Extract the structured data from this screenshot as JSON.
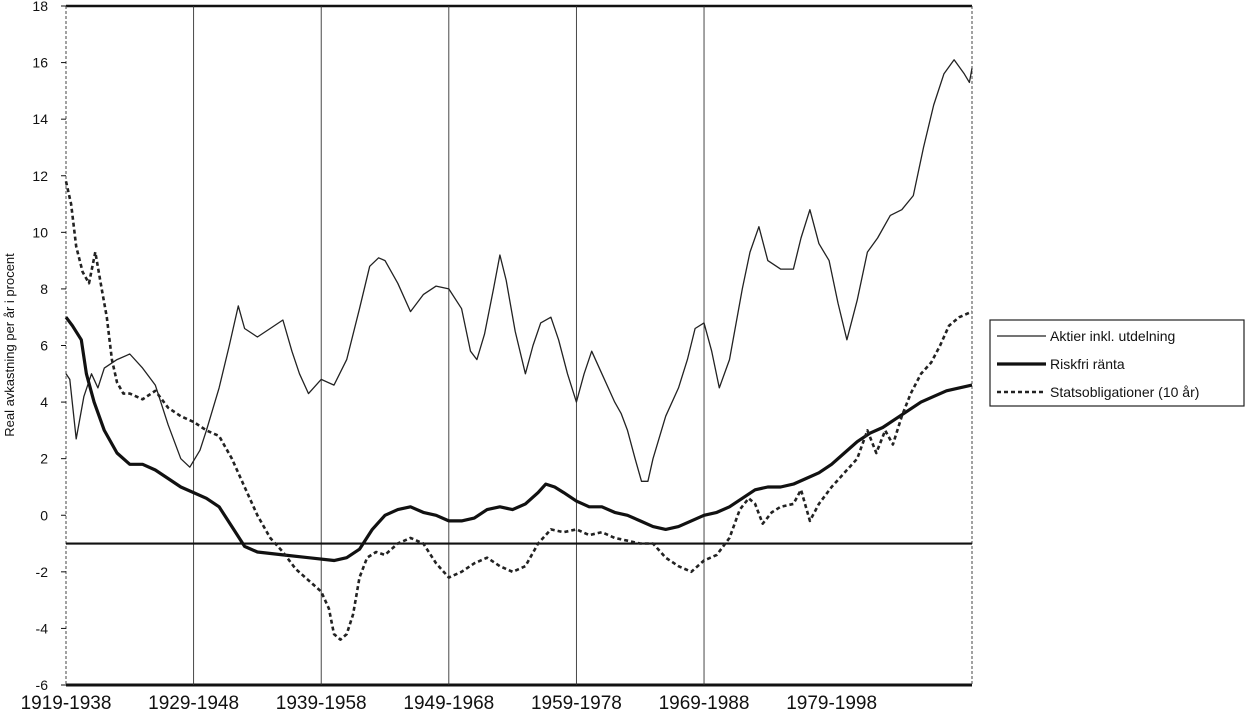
{
  "chart_data": {
    "type": "line",
    "title": "",
    "xlabel": "",
    "ylabel": "Real avkastning per år i procent",
    "ylim": [
      -6,
      18
    ],
    "yticks": [
      -6,
      -4,
      -2,
      0,
      2,
      4,
      6,
      8,
      10,
      12,
      14,
      16,
      18
    ],
    "x_axis": {
      "start_year": 1938,
      "end_year": 1998,
      "tick_labels": [
        "1919-1938",
        "1929-1948",
        "1939-1958",
        "1949-1968",
        "1959-1978",
        "1969-1988",
        "1979-1998"
      ],
      "tick_positions": [
        1938,
        1948,
        1958,
        1968,
        1978,
        1988,
        1998
      ]
    },
    "grid": {
      "vertical": true,
      "horizontal": false
    },
    "reference_lines": [
      {
        "y": -1,
        "style": "solid"
      }
    ],
    "legend_position": "right",
    "legend": [
      {
        "name": "Aktier inkl. utdelning",
        "style": "thin",
        "color": "#222222"
      },
      {
        "name": "Riskfri ränta",
        "style": "thick",
        "color": "#111111"
      },
      {
        "name": "Statsobligationer (10 år)",
        "style": "dashed",
        "color": "#222222"
      }
    ],
    "series": [
      {
        "name": "Aktier inkl. utdelning",
        "points": [
          [
            1938.0,
            5.0
          ],
          [
            1938.3,
            4.8
          ],
          [
            1938.8,
            2.7
          ],
          [
            1939.4,
            4.2
          ],
          [
            1940.0,
            5.0
          ],
          [
            1940.5,
            4.5
          ],
          [
            1941.0,
            5.2
          ],
          [
            1942.0,
            5.5
          ],
          [
            1943.0,
            5.7
          ],
          [
            1944.0,
            5.2
          ],
          [
            1945.0,
            4.6
          ],
          [
            1946.0,
            3.2
          ],
          [
            1947.0,
            2.0
          ],
          [
            1947.7,
            1.7
          ],
          [
            1948.5,
            2.3
          ],
          [
            1949.0,
            3.0
          ],
          [
            1950.0,
            4.5
          ],
          [
            1950.8,
            6.0
          ],
          [
            1951.5,
            7.4
          ],
          [
            1952.0,
            6.6
          ],
          [
            1953.0,
            6.3
          ],
          [
            1954.0,
            6.6
          ],
          [
            1955.0,
            6.9
          ],
          [
            1955.7,
            5.8
          ],
          [
            1956.3,
            5.0
          ],
          [
            1957.0,
            4.3
          ],
          [
            1958.0,
            4.8
          ],
          [
            1959.0,
            4.6
          ],
          [
            1960.0,
            5.5
          ],
          [
            1961.0,
            7.3
          ],
          [
            1961.8,
            8.8
          ],
          [
            1962.5,
            9.1
          ],
          [
            1963.0,
            9.0
          ],
          [
            1964.0,
            8.2
          ],
          [
            1965.0,
            7.2
          ],
          [
            1966.0,
            7.8
          ],
          [
            1967.0,
            8.1
          ],
          [
            1968.0,
            8.0
          ],
          [
            1969.0,
            7.3
          ],
          [
            1969.7,
            5.8
          ],
          [
            1970.2,
            5.5
          ],
          [
            1970.8,
            6.4
          ],
          [
            1971.5,
            8.0
          ],
          [
            1972.0,
            9.2
          ],
          [
            1972.5,
            8.3
          ],
          [
            1973.2,
            6.5
          ],
          [
            1974.0,
            5.0
          ],
          [
            1974.6,
            6.0
          ],
          [
            1975.2,
            6.8
          ],
          [
            1976.0,
            7.0
          ],
          [
            1976.6,
            6.2
          ],
          [
            1977.3,
            5.0
          ],
          [
            1978.0,
            4.0
          ],
          [
            1978.6,
            5.0
          ],
          [
            1979.2,
            5.8
          ],
          [
            1980.0,
            5.0
          ],
          [
            1981.0,
            4.0
          ],
          [
            1981.5,
            3.6
          ],
          [
            1982.0,
            3.0
          ],
          [
            1982.6,
            2.0
          ],
          [
            1983.1,
            1.2
          ],
          [
            1983.6,
            1.2
          ],
          [
            1984.0,
            2.0
          ],
          [
            1985.0,
            3.5
          ],
          [
            1986.0,
            4.5
          ],
          [
            1986.7,
            5.5
          ],
          [
            1987.3,
            6.6
          ],
          [
            1988.0,
            6.8
          ],
          [
            1988.6,
            5.8
          ],
          [
            1989.2,
            4.5
          ],
          [
            1990.0,
            5.5
          ],
          [
            1991.0,
            8.0
          ],
          [
            1991.6,
            9.3
          ],
          [
            1992.3,
            10.2
          ],
          [
            1993.0,
            9.0
          ],
          [
            1994.0,
            8.7
          ],
          [
            1995.0,
            8.7
          ],
          [
            1995.6,
            9.8
          ],
          [
            1996.3,
            10.8
          ],
          [
            1997.0,
            9.6
          ],
          [
            1997.8,
            9.0
          ],
          [
            1998.5,
            7.5
          ],
          [
            1999.2,
            6.2
          ],
          [
            2000.0,
            7.6
          ],
          [
            2000.8,
            9.3
          ],
          [
            2001.6,
            9.8
          ],
          [
            2002.6,
            10.6
          ],
          [
            2003.5,
            10.8
          ],
          [
            2004.4,
            11.3
          ],
          [
            2005.2,
            13.0
          ],
          [
            2006.0,
            14.5
          ],
          [
            2006.8,
            15.6
          ],
          [
            2007.6,
            16.1
          ],
          [
            2008.4,
            15.6
          ],
          [
            2008.8,
            15.3
          ],
          [
            2009.0,
            15.8
          ]
        ]
      },
      {
        "name": "Riskfri ränta",
        "points": [
          [
            1938.0,
            7.0
          ],
          [
            1938.5,
            6.7
          ],
          [
            1939.2,
            6.2
          ],
          [
            1939.6,
            5.0
          ],
          [
            1940.2,
            4.0
          ],
          [
            1941.0,
            3.0
          ],
          [
            1942.0,
            2.2
          ],
          [
            1943.0,
            1.8
          ],
          [
            1944.0,
            1.8
          ],
          [
            1945.0,
            1.6
          ],
          [
            1946.0,
            1.3
          ],
          [
            1947.0,
            1.0
          ],
          [
            1948.0,
            0.8
          ],
          [
            1949.0,
            0.6
          ],
          [
            1950.0,
            0.3
          ],
          [
            1951.0,
            -0.4
          ],
          [
            1952.0,
            -1.1
          ],
          [
            1953.0,
            -1.3
          ],
          [
            1955.0,
            -1.4
          ],
          [
            1957.0,
            -1.5
          ],
          [
            1959.0,
            -1.6
          ],
          [
            1960.0,
            -1.5
          ],
          [
            1961.0,
            -1.2
          ],
          [
            1962.0,
            -0.5
          ],
          [
            1963.0,
            0.0
          ],
          [
            1964.0,
            0.2
          ],
          [
            1965.0,
            0.3
          ],
          [
            1966.0,
            0.1
          ],
          [
            1967.0,
            0.0
          ],
          [
            1968.0,
            -0.2
          ],
          [
            1969.0,
            -0.2
          ],
          [
            1970.0,
            -0.1
          ],
          [
            1971.0,
            0.2
          ],
          [
            1972.0,
            0.3
          ],
          [
            1973.0,
            0.2
          ],
          [
            1974.0,
            0.4
          ],
          [
            1975.0,
            0.8
          ],
          [
            1975.6,
            1.1
          ],
          [
            1976.3,
            1.0
          ],
          [
            1977.0,
            0.8
          ],
          [
            1978.0,
            0.5
          ],
          [
            1979.0,
            0.3
          ],
          [
            1980.0,
            0.3
          ],
          [
            1981.0,
            0.1
          ],
          [
            1982.0,
            0.0
          ],
          [
            1983.0,
            -0.2
          ],
          [
            1984.0,
            -0.4
          ],
          [
            1985.0,
            -0.5
          ],
          [
            1986.0,
            -0.4
          ],
          [
            1987.0,
            -0.2
          ],
          [
            1988.0,
            0.0
          ],
          [
            1989.0,
            0.1
          ],
          [
            1990.0,
            0.3
          ],
          [
            1991.0,
            0.6
          ],
          [
            1992.0,
            0.9
          ],
          [
            1993.0,
            1.0
          ],
          [
            1994.0,
            1.0
          ],
          [
            1995.0,
            1.1
          ],
          [
            1996.0,
            1.3
          ],
          [
            1997.0,
            1.5
          ],
          [
            1998.0,
            1.8
          ],
          [
            1999.0,
            2.2
          ],
          [
            2000.0,
            2.6
          ],
          [
            2001.0,
            2.9
          ],
          [
            2002.0,
            3.1
          ],
          [
            2003.0,
            3.4
          ],
          [
            2004.0,
            3.7
          ],
          [
            2005.0,
            4.0
          ],
          [
            2006.0,
            4.2
          ],
          [
            2007.0,
            4.4
          ],
          [
            2008.0,
            4.5
          ],
          [
            2009.0,
            4.6
          ]
        ]
      },
      {
        "name": "Statsobligationer (10 år)",
        "points": [
          [
            1938.0,
            11.8
          ],
          [
            1938.4,
            11.0
          ],
          [
            1938.8,
            9.5
          ],
          [
            1939.3,
            8.6
          ],
          [
            1939.8,
            8.2
          ],
          [
            1940.3,
            9.3
          ],
          [
            1940.8,
            8.0
          ],
          [
            1941.2,
            7.0
          ],
          [
            1941.6,
            5.5
          ],
          [
            1942.0,
            4.7
          ],
          [
            1942.5,
            4.3
          ],
          [
            1943.0,
            4.3
          ],
          [
            1944.0,
            4.1
          ],
          [
            1945.0,
            4.4
          ],
          [
            1946.0,
            3.8
          ],
          [
            1947.0,
            3.5
          ],
          [
            1948.0,
            3.3
          ],
          [
            1949.0,
            3.0
          ],
          [
            1950.0,
            2.8
          ],
          [
            1951.0,
            2.0
          ],
          [
            1952.0,
            1.0
          ],
          [
            1953.0,
            0.0
          ],
          [
            1954.0,
            -0.8
          ],
          [
            1955.0,
            -1.3
          ],
          [
            1956.0,
            -1.9
          ],
          [
            1957.0,
            -2.3
          ],
          [
            1958.0,
            -2.7
          ],
          [
            1958.6,
            -3.3
          ],
          [
            1959.0,
            -4.2
          ],
          [
            1959.5,
            -4.4
          ],
          [
            1960.0,
            -4.2
          ],
          [
            1960.5,
            -3.5
          ],
          [
            1961.0,
            -2.2
          ],
          [
            1961.6,
            -1.5
          ],
          [
            1962.3,
            -1.3
          ],
          [
            1963.0,
            -1.4
          ],
          [
            1964.0,
            -1.0
          ],
          [
            1965.0,
            -0.8
          ],
          [
            1966.0,
            -1.0
          ],
          [
            1967.0,
            -1.7
          ],
          [
            1968.0,
            -2.2
          ],
          [
            1969.0,
            -2.0
          ],
          [
            1970.0,
            -1.7
          ],
          [
            1971.0,
            -1.5
          ],
          [
            1972.0,
            -1.8
          ],
          [
            1973.0,
            -2.0
          ],
          [
            1974.0,
            -1.8
          ],
          [
            1975.0,
            -1.0
          ],
          [
            1976.0,
            -0.5
          ],
          [
            1977.0,
            -0.6
          ],
          [
            1978.0,
            -0.5
          ],
          [
            1979.0,
            -0.7
          ],
          [
            1980.0,
            -0.6
          ],
          [
            1981.0,
            -0.8
          ],
          [
            1982.0,
            -0.9
          ],
          [
            1983.0,
            -1.0
          ],
          [
            1984.0,
            -1.0
          ],
          [
            1985.0,
            -1.5
          ],
          [
            1986.0,
            -1.8
          ],
          [
            1987.0,
            -2.0
          ],
          [
            1988.0,
            -1.6
          ],
          [
            1989.0,
            -1.4
          ],
          [
            1990.0,
            -0.8
          ],
          [
            1990.8,
            0.2
          ],
          [
            1991.5,
            0.6
          ],
          [
            1992.0,
            0.4
          ],
          [
            1992.6,
            -0.3
          ],
          [
            1993.3,
            0.1
          ],
          [
            1994.0,
            0.3
          ],
          [
            1995.0,
            0.4
          ],
          [
            1995.6,
            0.9
          ],
          [
            1996.3,
            -0.2
          ],
          [
            1997.0,
            0.4
          ],
          [
            1998.0,
            1.0
          ],
          [
            1999.0,
            1.5
          ],
          [
            2000.0,
            2.0
          ],
          [
            2000.8,
            3.0
          ],
          [
            2001.5,
            2.2
          ],
          [
            2002.2,
            3.0
          ],
          [
            2002.8,
            2.5
          ],
          [
            2003.5,
            3.5
          ],
          [
            2004.2,
            4.3
          ],
          [
            2005.0,
            5.0
          ],
          [
            2005.8,
            5.4
          ],
          [
            2006.5,
            6.0
          ],
          [
            2007.2,
            6.7
          ],
          [
            2008.0,
            7.0
          ],
          [
            2009.0,
            7.2
          ]
        ]
      }
    ]
  }
}
